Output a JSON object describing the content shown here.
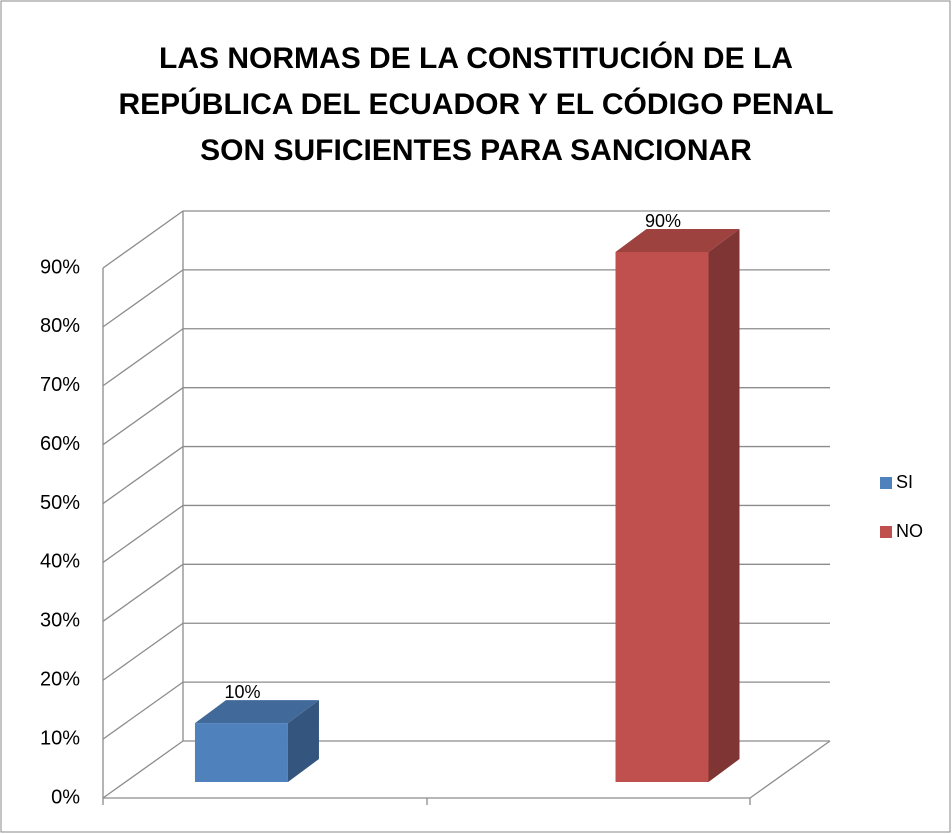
{
  "chart_data": {
    "type": "bar3d",
    "title": [
      "LAS NORMAS DE LA CONSTITUCIÓN DE LA",
      "REPÚBLICA DEL ECUADOR Y EL CÓDIGO PENAL",
      "SON SUFICIENTES PARA SANCIONAR"
    ],
    "categories": [
      null
    ],
    "series": [
      {
        "name": "SI",
        "color": "#4f81bd",
        "values": [
          10
        ],
        "value_labels": [
          "10%"
        ]
      },
      {
        "name": "NO",
        "color": "#c0504d",
        "values": [
          90
        ],
        "value_labels": [
          "90%"
        ]
      }
    ],
    "ylim": [
      0,
      90
    ],
    "yticks": [
      {
        "value": 0,
        "label": "0%"
      },
      {
        "value": 10,
        "label": "10%"
      },
      {
        "value": 20,
        "label": "20%"
      },
      {
        "value": 30,
        "label": "30%"
      },
      {
        "value": 40,
        "label": "40%"
      },
      {
        "value": 50,
        "label": "50%"
      },
      {
        "value": 60,
        "label": "60%"
      },
      {
        "value": 70,
        "label": "70%"
      },
      {
        "value": 80,
        "label": "80%"
      },
      {
        "value": 90,
        "label": "90%"
      }
    ],
    "grid": true,
    "legend": "right"
  }
}
